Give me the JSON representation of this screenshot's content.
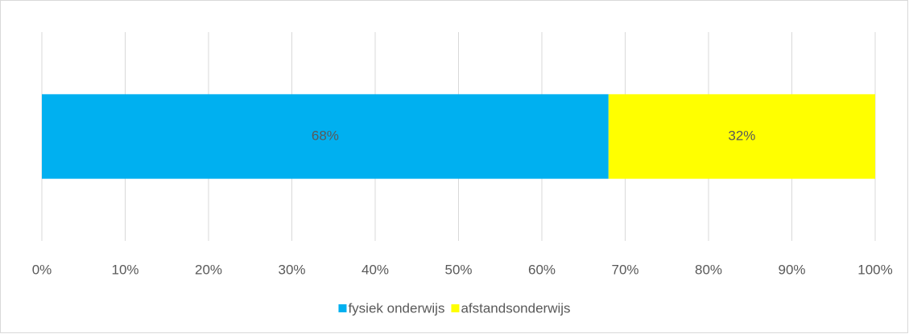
{
  "chart_data": {
    "type": "bar",
    "orientation": "horizontal",
    "stacked": true,
    "categories": [
      null
    ],
    "series": [
      {
        "name": "fysiek onderwijs",
        "color": "#00b0f0",
        "values": [
          68
        ],
        "value_labels": [
          "68%"
        ]
      },
      {
        "name": "afstandsonderwijs",
        "color": "#ffff00",
        "values": [
          32
        ],
        "value_labels": [
          "32%"
        ]
      }
    ],
    "xlim": [
      0,
      100
    ],
    "xticks": [
      {
        "value": 0,
        "label": "0%"
      },
      {
        "value": 10,
        "label": "10%"
      },
      {
        "value": 20,
        "label": "20%"
      },
      {
        "value": 30,
        "label": "30%"
      },
      {
        "value": 40,
        "label": "40%"
      },
      {
        "value": 50,
        "label": "50%"
      },
      {
        "value": 60,
        "label": "60%"
      },
      {
        "value": 70,
        "label": "70%"
      },
      {
        "value": 80,
        "label": "80%"
      },
      {
        "value": 90,
        "label": "90%"
      },
      {
        "value": 100,
        "label": "100%"
      }
    ],
    "grid": true,
    "legend": "bottom"
  }
}
